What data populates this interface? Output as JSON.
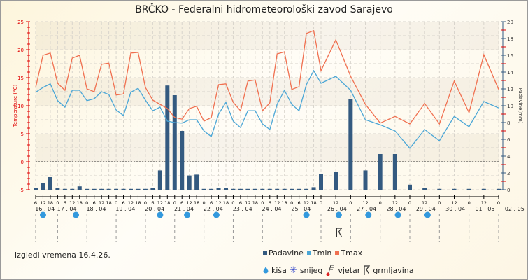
{
  "title": "BRČKO - Federalni hidrometeorološki zavod Sarajevo",
  "note": "izgledi vremena 16.4.26.",
  "colors": {
    "padavine": "#345a80",
    "tmin": "#4aa6d6",
    "tmax": "#f07050",
    "axis_left": "#e00000",
    "rain": "#3399dd"
  },
  "legend": {
    "padavine": "Padavine",
    "tmin": "Tmin",
    "tmax": "Tmax",
    "kisa": "kiša",
    "snijeg": "snijeg",
    "vjetar": "vjetar",
    "grmljavina": "grmljavina"
  },
  "chart_data": {
    "type": "bar+line",
    "title": "BRČKO - Federalni hidrometeorološki zavod Sarajevo",
    "ylabel": "Temperature (°C)",
    "y2label": "Padavine(mm)",
    "ylim": [
      -5,
      25
    ],
    "y_ticks": [
      "-5",
      "0",
      "5",
      "10",
      "15",
      "20",
      "25"
    ],
    "y2lim": [
      0,
      20
    ],
    "y2_ticks": [
      "0",
      "2",
      "4",
      "6",
      "8",
      "10",
      "12",
      "14",
      "16",
      "18",
      "20"
    ],
    "x_hours": [
      "6",
      "12",
      "18",
      "0",
      "6",
      "12",
      "18",
      "0",
      "6",
      "12",
      "18",
      "0",
      "6",
      "12",
      "18",
      "0",
      "6",
      "12",
      "18",
      "0",
      "6",
      "12",
      "18",
      "0",
      "6",
      "12",
      "18",
      "0",
      "6",
      "12",
      "18",
      "0",
      "6",
      "12",
      "18",
      "0",
      "6",
      "12",
      "18",
      "0",
      "12",
      "0",
      "12",
      "0",
      "12",
      "0",
      "12",
      "0",
      "12",
      "0",
      "12",
      "0"
    ],
    "days": [
      {
        "label": "16 . 04",
        "idx": 0.5
      },
      {
        "label": "17 . 04",
        "idx": 3.5
      },
      {
        "label": "18 . 04",
        "idx": 7.5
      },
      {
        "label": "19 . 04",
        "idx": 11.5
      },
      {
        "label": "20 . 04",
        "idx": 15.5
      },
      {
        "label": "21 . 04",
        "idx": 19.5
      },
      {
        "label": "22 . 04",
        "idx": 23.5
      },
      {
        "label": "23 . 04",
        "idx": 27.5
      },
      {
        "label": "24 . 04",
        "idx": 31.5
      },
      {
        "label": "25 . 04",
        "idx": 35.5
      },
      {
        "label": "26 . 04",
        "idx": 39.7
      },
      {
        "label": "27 . 04",
        "idx": 41.7
      },
      {
        "label": "28 . 04",
        "idx": 43.7
      },
      {
        "label": "29 . 04",
        "idx": 45.7
      },
      {
        "label": "30 . 04",
        "idx": 47.7
      },
      {
        "label": "01 . 05",
        "idx": 49.7
      },
      {
        "label": "02 . 05",
        "idx": 51.7
      }
    ],
    "series": [
      {
        "name": "Tmax",
        "values": [
          13.25,
          19,
          19.4,
          14,
          12.75,
          18.5,
          19,
          13,
          12.5,
          17.4,
          17.6,
          11.9,
          12.1,
          19.4,
          19.5,
          13.25,
          11,
          10.25,
          9.5,
          7.9,
          7.6,
          9.5,
          9.9,
          7.25,
          7.9,
          13.75,
          13.9,
          10.6,
          9.1,
          14.4,
          14.6,
          9.1,
          10.5,
          19.25,
          19.6,
          12.9,
          13.4,
          22.9,
          23.4,
          16.25,
          21.75,
          15.25,
          10.25,
          6.9,
          8.1,
          6.75,
          10.4,
          6.75,
          14.4,
          8.75,
          19.1,
          12.9
        ]
      },
      {
        "name": "Tmin",
        "values": [
          12.4,
          13.25,
          13.9,
          10.9,
          9.75,
          12.75,
          12.75,
          10.9,
          11.25,
          12.5,
          12,
          9.25,
          8.25,
          12.4,
          13.1,
          11,
          9.1,
          9.75,
          7.25,
          7,
          6.9,
          7.5,
          7.5,
          5.5,
          4.5,
          8.5,
          10.6,
          7.25,
          6.1,
          9.1,
          9.1,
          6.75,
          5.75,
          10.25,
          12.75,
          10.25,
          9.1,
          13.75,
          16.25,
          14,
          15.25,
          12.75,
          7.5,
          6.6,
          5.5,
          2.4,
          5.75,
          3.75,
          8.1,
          6.25,
          10.75,
          9.6
        ]
      },
      {
        "name": "Padavine",
        "values": [
          0.2,
          0.8,
          1.5,
          0.25,
          0,
          0,
          0.4,
          0,
          0,
          0,
          0,
          0,
          0,
          0,
          0,
          0,
          0.2,
          2.3,
          12.4,
          11.25,
          7,
          1.7,
          1.8,
          0,
          0,
          0.2,
          0.2,
          0,
          0,
          0,
          0,
          0,
          0,
          0,
          0,
          0,
          0,
          0,
          0.3,
          1.9,
          2.1,
          10.75,
          2.3,
          4.25,
          4.25,
          0.6,
          0.2,
          0,
          0,
          0,
          0,
          0
        ]
      }
    ],
    "rain_at": [
      1,
      5.5,
      17,
      20.7,
      24.7,
      37,
      40.2,
      42.2,
      44.2,
      46.2
    ],
    "thunder_at": [
      40.2
    ]
  }
}
